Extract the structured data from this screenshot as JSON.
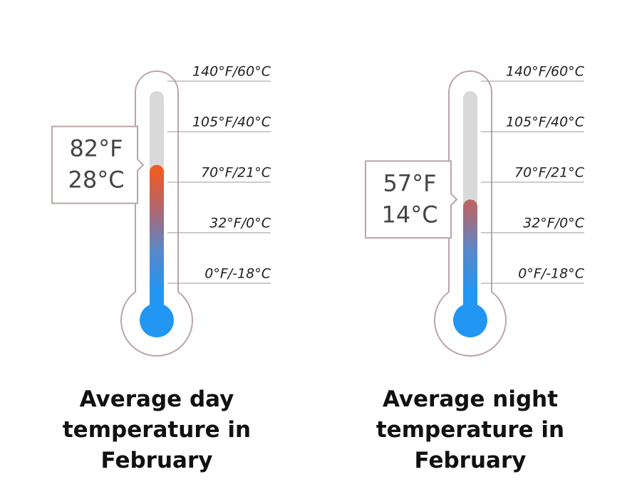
{
  "chart_data": [
    {
      "type": "thermometer",
      "title": "Average day temperature in February",
      "values": [
        82
      ],
      "value_labels": [
        [
          "82°F",
          "28°C"
        ]
      ],
      "ylim": [
        0,
        140
      ],
      "yticks": [
        {
          "value": 0,
          "label": "0°F/-18°C"
        },
        {
          "value": 32,
          "label": "32°F/0°C"
        },
        {
          "value": 70,
          "label": "70°F/21°C"
        },
        {
          "value": 105,
          "label": "105°F/40°C"
        },
        {
          "value": 140,
          "label": "140°F/60°C"
        }
      ]
    },
    {
      "type": "thermometer",
      "title": "Average night temperature in February",
      "values": [
        57
      ],
      "value_labels": [
        [
          "57°F",
          "14°C"
        ]
      ],
      "ylim": [
        0,
        140
      ],
      "yticks": [
        {
          "value": 0,
          "label": "0°F/-18°C"
        },
        {
          "value": 32,
          "label": "32°F/0°C"
        },
        {
          "value": 70,
          "label": "70°F/21°C"
        },
        {
          "value": 105,
          "label": "105°F/40°C"
        },
        {
          "value": 140,
          "label": "140°F/60°C"
        }
      ]
    }
  ]
}
